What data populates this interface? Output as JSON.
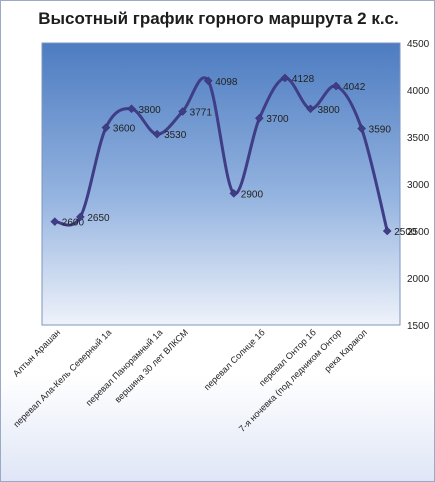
{
  "chart_data": {
    "type": "line",
    "title": "Высотный график горного маршрута 2 к.с.",
    "xlabel": "",
    "ylabel": "",
    "ylim": [
      1500,
      4500
    ],
    "yticks": [
      1500,
      2000,
      2500,
      3000,
      3500,
      4000,
      4500
    ],
    "grid": false,
    "legend": "none",
    "smooth": true,
    "categories_count": 14,
    "points": [
      {
        "x": 1,
        "y": 2600
      },
      {
        "x": 2,
        "y": 2650
      },
      {
        "x": 3,
        "y": 3600
      },
      {
        "x": 4,
        "y": 3800
      },
      {
        "x": 5,
        "y": 3530
      },
      {
        "x": 6,
        "y": 3771
      },
      {
        "x": 7,
        "y": 4098
      },
      {
        "x": 8,
        "y": 2900
      },
      {
        "x": 9,
        "y": 3700
      },
      {
        "x": 10,
        "y": 4128
      },
      {
        "x": 11,
        "y": 3800
      },
      {
        "x": 12,
        "y": 4042
      },
      {
        "x": 13,
        "y": 3590
      },
      {
        "x": 14,
        "y": 2500
      }
    ],
    "category_labels": [
      {
        "x": 1,
        "label": "Алтын Арашан"
      },
      {
        "x": 3,
        "label": "перевал Ала-Кель Северный 1а"
      },
      {
        "x": 5,
        "label": "перевал Панорамный 1а"
      },
      {
        "x": 6,
        "label": "вершина 30 лет ВЛКСМ"
      },
      {
        "x": 9,
        "label": "перевал Солнце 1б"
      },
      {
        "x": 11,
        "label": "перевал Онтор 1б"
      },
      {
        "x": 12,
        "label": "7-я ночевка (под ледником Онтор"
      },
      {
        "x": 13,
        "label": "река Каракол"
      }
    ],
    "colors": {
      "line": "#3f3d86",
      "plot_top": "#4d7cc1",
      "plot_mid": "#95b4e0",
      "plot_bottom": "#eef2fa"
    }
  }
}
